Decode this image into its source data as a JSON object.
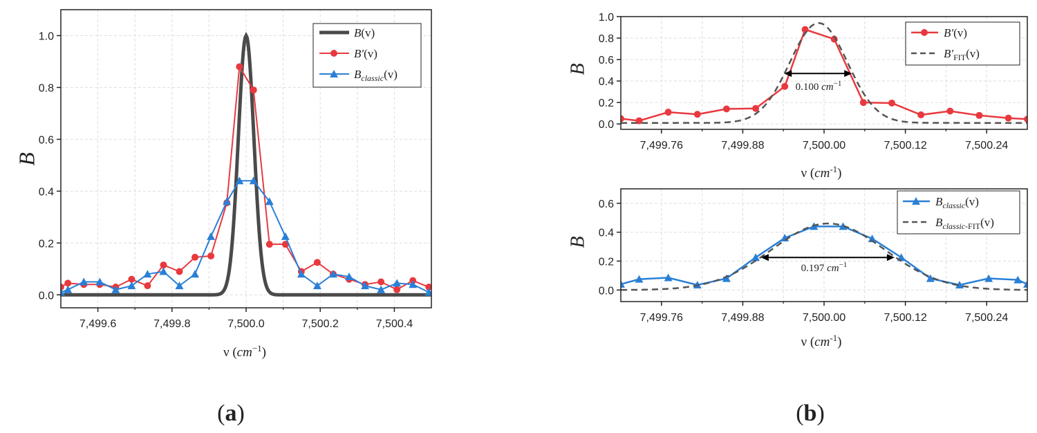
{
  "figure": {
    "panel_a_label": "(a)",
    "panel_b_label": "(b)"
  },
  "colors": {
    "black_curve": "#4a4a4a",
    "red": "#e8393f",
    "blue": "#2a7fd6",
    "dashed": "#555555",
    "grid": "#dddddd"
  },
  "chart_data": [
    {
      "id": "a",
      "type": "line",
      "ylabel": "B",
      "xlabel": "ν (cm⁻¹)",
      "xlim": [
        7499.5,
        7500.5
      ],
      "ylim": [
        -0.05,
        1.1
      ],
      "xticks": [
        7499.6,
        7499.8,
        7500.0,
        7500.2,
        7500.4
      ],
      "xtick_labels": [
        "7,499.6",
        "7,499.8",
        "7,500.0",
        "7,500.2",
        "7,500.4"
      ],
      "yticks": [
        0,
        0.2,
        0.4,
        0.6,
        0.8,
        1.0
      ],
      "ytick_labels": [
        "0.0",
        "0.2",
        "0.4",
        "0.6",
        "0.8",
        "1.0"
      ],
      "legend_position": "top-right",
      "series": [
        {
          "name": "B(v)",
          "style": "thick-line",
          "function": "gaussian",
          "center": 7500.0,
          "sigma": 0.021,
          "amplitude": 1.0
        },
        {
          "name": "B′(v)",
          "style": "circle-markers",
          "x": [
            7499.5,
            7499.519,
            7499.562,
            7499.605,
            7499.648,
            7499.691,
            7499.734,
            7499.777,
            7499.82,
            7499.862,
            7499.905,
            7499.948,
            7499.982,
            7500.02,
            7500.063,
            7500.106,
            7500.149,
            7500.192,
            7500.235,
            7500.278,
            7500.321,
            7500.364,
            7500.407,
            7500.45,
            7500.493
          ],
          "y": [
            0.03,
            0.045,
            0.04,
            0.04,
            0.03,
            0.06,
            0.035,
            0.115,
            0.09,
            0.145,
            0.15,
            0.355,
            0.88,
            0.79,
            0.195,
            0.195,
            0.09,
            0.125,
            0.08,
            0.06,
            0.04,
            0.05,
            0.02,
            0.055,
            0.03
          ]
        },
        {
          "name": "B_classic(v)",
          "style": "triangle-markers",
          "x": [
            7499.5,
            7499.519,
            7499.562,
            7499.605,
            7499.648,
            7499.691,
            7499.734,
            7499.777,
            7499.82,
            7499.862,
            7499.905,
            7499.948,
            7499.982,
            7500.02,
            7500.063,
            7500.106,
            7500.149,
            7500.192,
            7500.235,
            7500.278,
            7500.321,
            7500.364,
            7500.407,
            7500.45,
            7500.493
          ],
          "y": [
            0.01,
            0.02,
            0.05,
            0.05,
            0.02,
            0.035,
            0.08,
            0.09,
            0.035,
            0.08,
            0.225,
            0.36,
            0.44,
            0.44,
            0.36,
            0.225,
            0.08,
            0.035,
            0.08,
            0.07,
            0.035,
            0.02,
            0.045,
            0.04,
            0.01
          ]
        }
      ],
      "legend": {
        "s0_base": "B",
        "s0_arg": "(v)",
        "s1_base": "B′",
        "s1_arg": "(v)",
        "s2_base": "B",
        "s2_sub": "classic",
        "s2_arg": "(v)"
      }
    },
    {
      "id": "b-top",
      "type": "line",
      "ylabel": "B",
      "xlabel": "ν (cm⁻¹)",
      "xlim": [
        7499.7,
        7500.3
      ],
      "ylim": [
        -0.05,
        1.0
      ],
      "xticks": [
        7499.76,
        7499.88,
        7500.0,
        7500.12,
        7500.24
      ],
      "xtick_labels": [
        "7,499.76",
        "7,499.88",
        "7,500.00",
        "7,500.12",
        "7,500.24"
      ],
      "yticks": [
        0,
        0.2,
        0.4,
        0.6,
        0.8,
        1.0
      ],
      "ytick_labels": [
        "0.0",
        "0.2",
        "0.4",
        "0.6",
        "0.8",
        "1.0"
      ],
      "legend_position": "top-right",
      "series": [
        {
          "name": "B′(v)",
          "style": "circle-markers",
          "x": [
            7499.7,
            7499.727,
            7499.77,
            7499.813,
            7499.856,
            7499.899,
            7499.942,
            7499.972,
            7500.015,
            7500.058,
            7500.1,
            7500.143,
            7500.186,
            7500.229,
            7500.272,
            7500.3
          ],
          "y": [
            0.05,
            0.03,
            0.11,
            0.09,
            0.14,
            0.145,
            0.35,
            0.88,
            0.79,
            0.2,
            0.195,
            0.085,
            0.12,
            0.08,
            0.055,
            0.045
          ]
        },
        {
          "name": "B′FIT(v)",
          "style": "dashed",
          "function": "gaussian",
          "center": 7499.992,
          "sigma": 0.0425,
          "amplitude": 0.93,
          "baseline": 0.01
        }
      ],
      "annotation": {
        "text_value": "0.100",
        "text_unit": "cm",
        "text_exp": "−1",
        "x1": 7499.941,
        "x2": 7500.041,
        "y": 0.47
      },
      "legend": {
        "s0_base": "B′",
        "s0_arg": "(v)",
        "s1_base": "B′",
        "s1_sub": "FIT",
        "s1_arg": "(v)"
      }
    },
    {
      "id": "b-bottom",
      "type": "line",
      "ylabel": "B",
      "xlabel": "ν (cm⁻¹)",
      "xlim": [
        7499.7,
        7500.3
      ],
      "ylim": [
        -0.08,
        0.7
      ],
      "xticks": [
        7499.76,
        7499.88,
        7500.0,
        7500.12,
        7500.24
      ],
      "xtick_labels": [
        "7,499.76",
        "7,499.88",
        "7,500.00",
        "7,500.12",
        "7,500.24"
      ],
      "yticks": [
        0,
        0.2,
        0.4,
        0.6
      ],
      "ytick_labels": [
        "0.0",
        "0.2",
        "0.4",
        "0.6"
      ],
      "legend_position": "top-right",
      "series": [
        {
          "name": "B_classic(v)",
          "style": "triangle-markers",
          "x": [
            7499.7,
            7499.727,
            7499.77,
            7499.813,
            7499.856,
            7499.899,
            7499.942,
            7499.985,
            7500.028,
            7500.071,
            7500.114,
            7500.157,
            7500.2,
            7500.243,
            7500.286,
            7500.3
          ],
          "y": [
            0.04,
            0.075,
            0.085,
            0.035,
            0.08,
            0.225,
            0.36,
            0.44,
            0.44,
            0.355,
            0.225,
            0.08,
            0.035,
            0.08,
            0.07,
            0.04
          ]
        },
        {
          "name": "B_classic-FIT(v)",
          "style": "dashed",
          "function": "gaussian",
          "center": 7500.006,
          "sigma": 0.0836,
          "amplitude": 0.46,
          "baseline": 0.0
        }
      ],
      "annotation": {
        "text_value": "0.197",
        "text_unit": "cm",
        "text_exp": "−1",
        "x1": 7499.907,
        "x2": 7500.104,
        "y": 0.225
      },
      "legend": {
        "s0_base": "B",
        "s0_sub": "classic",
        "s0_arg": "(v)",
        "s1_base": "B",
        "s1_sub": "classic",
        "s1_sub2": "-FIT",
        "s1_arg": "(v)"
      }
    }
  ]
}
